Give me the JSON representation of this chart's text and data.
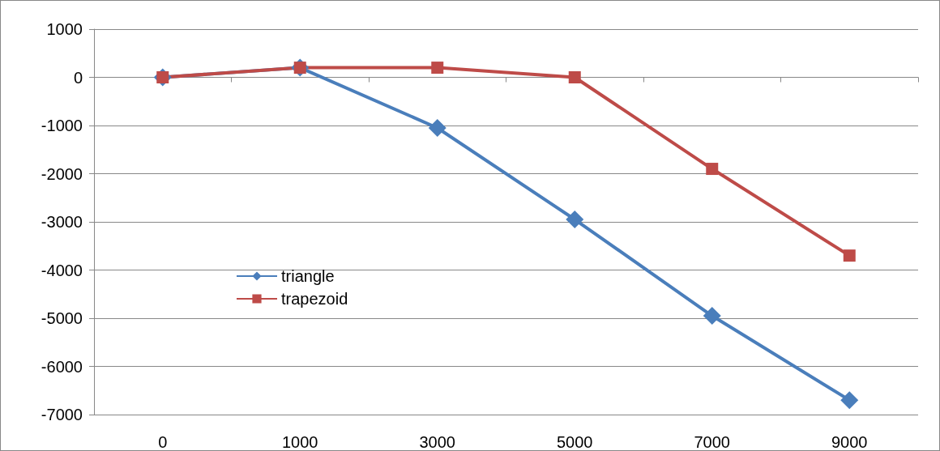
{
  "chart_data": {
    "type": "line",
    "categories": [
      "0",
      "1000",
      "3000",
      "5000",
      "7000",
      "9000"
    ],
    "series": [
      {
        "name": "triangle",
        "color": "#4a7ebb",
        "marker": "diamond",
        "values": [
          0,
          200,
          -1050,
          -2950,
          -4950,
          -6700
        ]
      },
      {
        "name": "trapezoid",
        "color": "#be4b48",
        "marker": "square",
        "values": [
          0,
          200,
          200,
          0,
          -1900,
          -3700
        ]
      }
    ],
    "ylim": [
      -7000,
      1000
    ],
    "yticks": [
      -7000,
      -6000,
      -5000,
      -4000,
      -3000,
      -2000,
      -1000,
      0,
      1000
    ],
    "grid": "y",
    "legend": "left"
  }
}
